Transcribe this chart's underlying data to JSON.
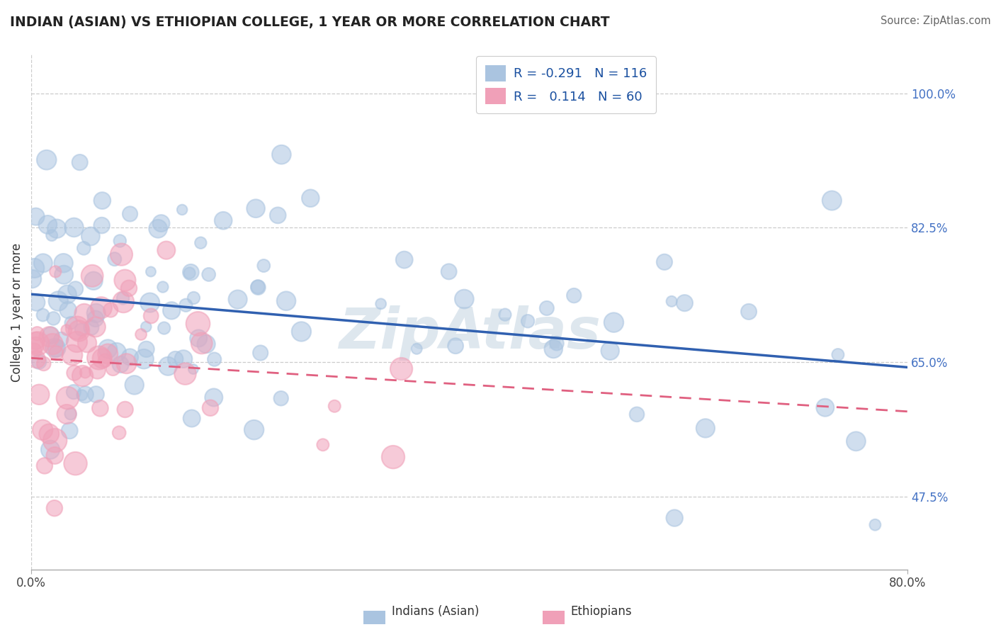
{
  "title": "INDIAN (ASIAN) VS ETHIOPIAN COLLEGE, 1 YEAR OR MORE CORRELATION CHART",
  "source": "Source: ZipAtlas.com",
  "ylabel": "College, 1 year or more",
  "ytick_labels": [
    "47.5%",
    "65.0%",
    "82.5%",
    "100.0%"
  ],
  "ytick_values": [
    0.475,
    0.65,
    0.825,
    1.0
  ],
  "xmin": 0.0,
  "xmax": 0.8,
  "ymin": 0.38,
  "ymax": 1.05,
  "color_indian": "#aac4e0",
  "color_ethiopian": "#f0a0b8",
  "color_line_indian": "#3060b0",
  "color_line_ethiopian": "#e06080",
  "watermark": "ZipAtlas",
  "seed": 12345
}
